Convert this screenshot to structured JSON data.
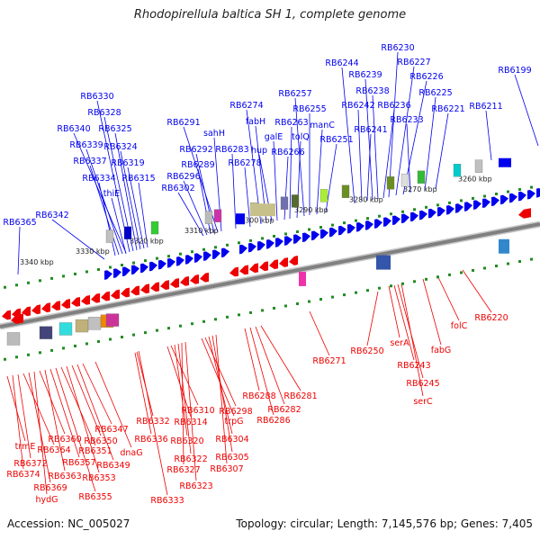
{
  "title": "Rhodopirellula baltica SH 1, complete genome",
  "footer": {
    "accession": "Accession: NC_005027",
    "stats": "Topology: circular; Length: 7,145,576 bp; Genes: 7,405"
  },
  "colors": {
    "forward": "#0000ee",
    "reverse": "#ee0000",
    "backbone": "#808080",
    "tick": "#228b22"
  },
  "scale_labels": [
    "3340 kbp",
    "3330 kbp",
    "3320 kbp",
    "3310 kbp",
    "3300 kbp",
    "3290 kbp",
    "3280 kbp",
    "3270 kbp",
    "3260 kbp"
  ],
  "forward_labels": [
    "RB6365",
    "RB6342",
    "RB6334",
    "RB6337",
    "RB6339",
    "RB6340",
    "RB6330",
    "RB6328",
    "RB6325",
    "RB6324",
    "RB6319",
    "RB6315",
    "thiE",
    "RB6302",
    "RB6296",
    "RB6289",
    "RB6292",
    "RB6291",
    "sahH",
    "RB6283",
    "RB6278",
    "RB6274",
    "fabH",
    "hup",
    "galE",
    "RB6266",
    "RB6263",
    "tolQ",
    "RB6257",
    "RB6255",
    "manC",
    "RB6251",
    "RB6244",
    "RB6242",
    "RB6241",
    "RB6239",
    "RB6238",
    "RB6236",
    "RB6230",
    "RB6227",
    "RB6226",
    "RB6233",
    "RB6225",
    "RB6221",
    "RB6211",
    "RB6199"
  ],
  "reverse_labels": [
    "trmE",
    "RB6374",
    "RB6372",
    "RB6364",
    "RB6369",
    "hydG",
    "RB6360",
    "RB6363",
    "RB6357",
    "RB6355",
    "RB6351",
    "RB6353",
    "RB6350",
    "RB6349",
    "RB6347",
    "dnaG",
    "RB6336",
    "RB6332",
    "RB6333",
    "RB6314",
    "RB6310",
    "RB6320",
    "RB6322",
    "RB6327",
    "RB6323",
    "trpG",
    "RB6298",
    "RB6304",
    "RB6305",
    "RB6307",
    "RB6288",
    "RB6286",
    "RB6282",
    "RB6281",
    "RB6271",
    "RB6250",
    "serA",
    "RB6243",
    "RB6245",
    "serC",
    "fabG",
    "folC",
    "RB6220"
  ]
}
